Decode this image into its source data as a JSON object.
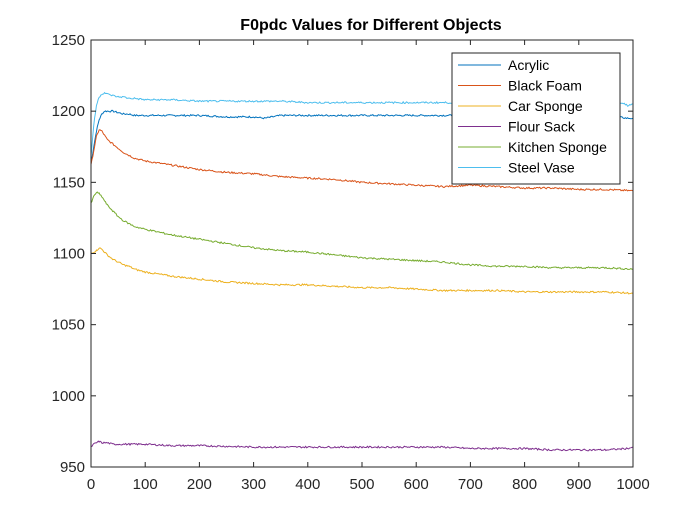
{
  "chart_data": {
    "type": "line",
    "title": "F0pdc Values for Different Objects",
    "xlabel": "",
    "ylabel": "",
    "xlim": [
      0,
      1000
    ],
    "ylim": [
      950,
      1250
    ],
    "xticks": [
      0,
      100,
      200,
      300,
      400,
      500,
      600,
      700,
      800,
      900,
      1000
    ],
    "yticks": [
      950,
      1000,
      1050,
      1100,
      1150,
      1200,
      1250
    ],
    "grid": false,
    "legend_position": "top-right",
    "series": [
      {
        "name": "Acrylic",
        "color": "#0072BD",
        "x": [
          0,
          5,
          10,
          15,
          20,
          25,
          30,
          40,
          50,
          60,
          70,
          80,
          100,
          150,
          200,
          250,
          300,
          320,
          350,
          400,
          500,
          600,
          700,
          800,
          900,
          950,
          990,
          1000
        ],
        "y": [
          1163,
          1175,
          1186,
          1194,
          1198,
          1200,
          1200,
          1200,
          1199,
          1198,
          1198,
          1197,
          1197,
          1197,
          1197,
          1196,
          1196,
          1195,
          1197,
          1197,
          1197,
          1197,
          1197,
          1197,
          1197,
          1197,
          1195,
          1195
        ]
      },
      {
        "name": "Black Foam",
        "color": "#D95319",
        "x": [
          0,
          5,
          10,
          15,
          20,
          25,
          30,
          40,
          50,
          60,
          70,
          80,
          100,
          150,
          200,
          250,
          300,
          350,
          400,
          450,
          500,
          550,
          600,
          650,
          700,
          750,
          800,
          850,
          900,
          950,
          1000
        ],
        "y": [
          1162,
          1172,
          1182,
          1187,
          1186,
          1183,
          1180,
          1177,
          1174,
          1171,
          1169,
          1167,
          1165,
          1162,
          1159,
          1157,
          1156,
          1154,
          1153,
          1152,
          1150,
          1149,
          1148,
          1147,
          1148,
          1147,
          1146,
          1146,
          1145,
          1145,
          1144
        ]
      },
      {
        "name": "Car Sponge",
        "color": "#EDB120",
        "x": [
          0,
          5,
          10,
          15,
          20,
          25,
          30,
          40,
          50,
          60,
          70,
          80,
          100,
          150,
          200,
          250,
          300,
          350,
          400,
          450,
          500,
          550,
          600,
          650,
          700,
          750,
          800,
          850,
          900,
          950,
          1000
        ],
        "y": [
          1100,
          1101,
          1102,
          1104,
          1103,
          1101,
          1099,
          1096,
          1094,
          1092,
          1091,
          1089,
          1087,
          1084,
          1082,
          1080,
          1079,
          1078,
          1078,
          1077,
          1076,
          1076,
          1075,
          1074,
          1074,
          1074,
          1073,
          1073,
          1073,
          1073,
          1072
        ]
      },
      {
        "name": "Flour Sack",
        "color": "#7E2F8E",
        "x": [
          0,
          5,
          10,
          15,
          20,
          30,
          40,
          50,
          70,
          100,
          150,
          200,
          300,
          400,
          500,
          600,
          650,
          700,
          750,
          800,
          850,
          900,
          950,
          990,
          1000
        ],
        "y": [
          964,
          966,
          967,
          968,
          967,
          967,
          966,
          966,
          966,
          966,
          965,
          965,
          964,
          964,
          964,
          964,
          964,
          963,
          963,
          963,
          962,
          962,
          962,
          963,
          964
        ]
      },
      {
        "name": "Kitchen Sponge",
        "color": "#77AC30",
        "x": [
          0,
          5,
          10,
          15,
          20,
          25,
          30,
          40,
          50,
          60,
          70,
          80,
          100,
          150,
          200,
          250,
          300,
          350,
          400,
          450,
          500,
          550,
          600,
          650,
          700,
          750,
          800,
          850,
          900,
          950,
          1000
        ],
        "y": [
          1135,
          1140,
          1143,
          1142,
          1140,
          1137,
          1134,
          1130,
          1126,
          1123,
          1121,
          1119,
          1117,
          1113,
          1110,
          1107,
          1104,
          1102,
          1101,
          1099,
          1097,
          1096,
          1095,
          1094,
          1092,
          1091,
          1091,
          1090,
          1090,
          1090,
          1089
        ]
      },
      {
        "name": "Steel Vase",
        "color": "#4DBEEE",
        "x": [
          0,
          5,
          10,
          15,
          20,
          25,
          30,
          40,
          50,
          60,
          70,
          80,
          100,
          150,
          200,
          250,
          300,
          350,
          400,
          450,
          500,
          550,
          600,
          650,
          700,
          750,
          800,
          850,
          900,
          950,
          980,
          990,
          1000
        ],
        "y": [
          1168,
          1190,
          1204,
          1210,
          1212,
          1213,
          1212,
          1211,
          1210,
          1210,
          1209,
          1209,
          1208,
          1208,
          1207,
          1207,
          1207,
          1207,
          1206,
          1206,
          1206,
          1206,
          1206,
          1206,
          1206,
          1206,
          1206,
          1206,
          1206,
          1206,
          1206,
          1204,
          1205
        ]
      }
    ]
  }
}
